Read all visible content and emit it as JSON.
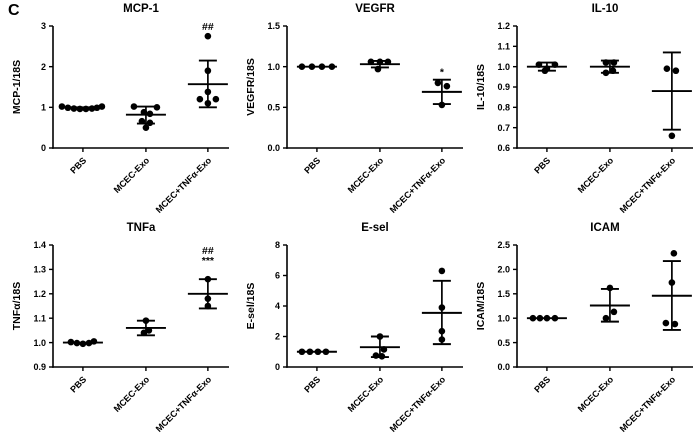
{
  "figure_label": "C",
  "colors": {
    "points": "#000000",
    "axis": "#000000",
    "background": "#ffffff"
  },
  "categories": [
    "PBS",
    "MCEC-Exo",
    "MCEC+TNFα-Exo"
  ],
  "chart_data": [
    {
      "type": "scatter",
      "title": "MCP-1",
      "ylabel": "MCP-1/18S",
      "ylim": [
        0,
        3
      ],
      "yticks": [
        0,
        1,
        2,
        3
      ],
      "ytick_decimals": 0,
      "grid": false,
      "groups": [
        {
          "category": "PBS",
          "mean": 1.0,
          "err_lo": null,
          "err_hi": null,
          "points": [
            [
              -21,
              1.02
            ],
            [
              -15,
              0.99
            ],
            [
              -9,
              0.97
            ],
            [
              -3,
              0.96
            ],
            [
              3,
              0.96
            ],
            [
              9,
              0.97
            ],
            [
              14,
              0.99
            ],
            [
              19,
              1.02
            ]
          ],
          "annotations": []
        },
        {
          "category": "MCEC-Exo",
          "mean": 0.82,
          "err_lo": 0.6,
          "err_hi": 1.02,
          "points": [
            [
              -12,
              1.02
            ],
            [
              11,
              1.0
            ],
            [
              -2,
              0.88
            ],
            [
              4,
              0.84
            ],
            [
              -4,
              0.66
            ],
            [
              4,
              0.62
            ],
            [
              0,
              0.5
            ]
          ],
          "annotations": []
        },
        {
          "category": "MCEC+TNFα-Exo",
          "mean": 1.57,
          "err_lo": 1.0,
          "err_hi": 2.15,
          "points": [
            [
              0,
              2.75
            ],
            [
              0,
              1.9
            ],
            [
              0,
              1.38
            ],
            [
              -8,
              1.2
            ],
            [
              0,
              1.1
            ],
            [
              8,
              1.2
            ]
          ],
          "annotations": [
            {
              "text": "##",
              "value": 2.97
            }
          ]
        }
      ]
    },
    {
      "type": "scatter",
      "title": "VEGFR",
      "ylabel": "VEGFR/18S",
      "ylim": [
        0,
        1.5
      ],
      "yticks": [
        0,
        0.5,
        1,
        1.5
      ],
      "ytick_decimals": 1,
      "grid": false,
      "groups": [
        {
          "category": "PBS",
          "mean": 1.0,
          "err_lo": null,
          "err_hi": null,
          "points": [
            [
              -15,
              1.0
            ],
            [
              -5,
              1.0
            ],
            [
              5,
              1.0
            ],
            [
              15,
              1.0
            ]
          ],
          "annotations": []
        },
        {
          "category": "MCEC-Exo",
          "mean": 1.03,
          "err_lo": 0.99,
          "err_hi": 1.07,
          "points": [
            [
              -9,
              1.06
            ],
            [
              0,
              1.06
            ],
            [
              8,
              1.06
            ],
            [
              -2,
              0.97
            ]
          ],
          "annotations": []
        },
        {
          "category": "MCEC+TNFα-Exo",
          "mean": 0.69,
          "err_lo": 0.54,
          "err_hi": 0.84,
          "points": [
            [
              -4,
              0.8
            ],
            [
              5,
              0.76
            ],
            [
              0,
              0.53
            ]
          ],
          "annotations": [
            {
              "text": "*",
              "value": 0.93
            }
          ]
        }
      ]
    },
    {
      "type": "scatter",
      "title": "IL-10",
      "ylabel": "IL-10/18S",
      "ylim": [
        0.6,
        1.2
      ],
      "yticks": [
        0.6,
        0.7,
        0.8,
        0.9,
        1.0,
        1.1,
        1.2
      ],
      "ytick_decimals": 1,
      "grid": false,
      "groups": [
        {
          "category": "PBS",
          "mean": 1.0,
          "err_lo": 0.98,
          "err_hi": 1.02,
          "points": [
            [
              -8,
              1.01
            ],
            [
              8,
              1.01
            ],
            [
              0,
              0.99
            ],
            [
              -2,
              0.98
            ]
          ],
          "annotations": []
        },
        {
          "category": "MCEC-Exo",
          "mean": 1.0,
          "err_lo": 0.97,
          "err_hi": 1.03,
          "points": [
            [
              -4,
              1.02
            ],
            [
              4,
              1.02
            ],
            [
              -4,
              0.97
            ],
            [
              3,
              0.98
            ]
          ],
          "annotations": []
        },
        {
          "category": "MCEC+TNFα-Exo",
          "mean": 0.88,
          "err_lo": 0.69,
          "err_hi": 1.07,
          "points": [
            [
              -5,
              0.99
            ],
            [
              4,
              0.98
            ],
            [
              0,
              0.66
            ]
          ],
          "annotations": []
        }
      ]
    },
    {
      "type": "scatter",
      "title": "TNFa",
      "ylabel": "TNFα/18S",
      "ylim": [
        0.9,
        1.4
      ],
      "yticks": [
        0.9,
        1.0,
        1.1,
        1.2,
        1.3,
        1.4
      ],
      "ytick_decimals": 1,
      "grid": false,
      "groups": [
        {
          "category": "PBS",
          "mean": 1.0,
          "err_lo": null,
          "err_hi": null,
          "points": [
            [
              -12,
              1.002
            ],
            [
              -6,
              0.998
            ],
            [
              0,
              0.995
            ],
            [
              6,
              0.998
            ],
            [
              11,
              1.005
            ]
          ],
          "annotations": []
        },
        {
          "category": "MCEC-Exo",
          "mean": 1.06,
          "err_lo": 1.03,
          "err_hi": 1.09,
          "points": [
            [
              0,
              1.09
            ],
            [
              3,
              1.05
            ],
            [
              -2,
              1.04
            ]
          ],
          "annotations": []
        },
        {
          "category": "MCEC+TNFα-Exo",
          "mean": 1.2,
          "err_lo": 1.14,
          "err_hi": 1.26,
          "points": [
            [
              0,
              1.26
            ],
            [
              0,
              1.18
            ],
            [
              0,
              1.15
            ]
          ],
          "annotations": [
            {
              "text": "##",
              "value": 1.375
            },
            {
              "text": "***",
              "value": 1.335
            }
          ]
        }
      ]
    },
    {
      "type": "scatter",
      "title": "E-sel",
      "ylabel": "E-sel/18S",
      "ylim": [
        0,
        8
      ],
      "yticks": [
        0,
        2,
        4,
        6,
        8
      ],
      "ytick_decimals": 0,
      "grid": false,
      "groups": [
        {
          "category": "PBS",
          "mean": 1.0,
          "err_lo": null,
          "err_hi": null,
          "points": [
            [
              -15,
              1.0
            ],
            [
              -7,
              1.0
            ],
            [
              1,
              1.0
            ],
            [
              9,
              1.0
            ]
          ],
          "annotations": []
        },
        {
          "category": "MCEC-Exo",
          "mean": 1.3,
          "err_lo": 0.65,
          "err_hi": 2.0,
          "points": [
            [
              0,
              2.0
            ],
            [
              4,
              1.15
            ],
            [
              -4,
              0.75
            ],
            [
              2,
              0.7
            ]
          ],
          "annotations": []
        },
        {
          "category": "MCEC+TNFα-Exo",
          "mean": 3.55,
          "err_lo": 1.5,
          "err_hi": 5.65,
          "points": [
            [
              0,
              6.3
            ],
            [
              0,
              3.9
            ],
            [
              0,
              2.35
            ],
            [
              0,
              1.8
            ]
          ],
          "annotations": []
        }
      ]
    },
    {
      "type": "scatter",
      "title": "ICAM",
      "ylabel": "ICAM/18S",
      "ylim": [
        0,
        2.5
      ],
      "yticks": [
        0,
        0.5,
        1.0,
        1.5,
        2.0,
        2.5
      ],
      "ytick_decimals": 1,
      "grid": false,
      "groups": [
        {
          "category": "PBS",
          "mean": 1.0,
          "err_lo": null,
          "err_hi": null,
          "points": [
            [
              -14,
              1.0
            ],
            [
              -7,
              1.0
            ],
            [
              0,
              1.0
            ],
            [
              8,
              1.0
            ]
          ],
          "annotations": []
        },
        {
          "category": "MCEC-Exo",
          "mean": 1.26,
          "err_lo": 0.93,
          "err_hi": 1.6,
          "points": [
            [
              0,
              1.62
            ],
            [
              4,
              1.13
            ],
            [
              -4,
              1.0
            ]
          ],
          "annotations": []
        },
        {
          "category": "MCEC+TNFα-Exo",
          "mean": 1.46,
          "err_lo": 0.76,
          "err_hi": 2.17,
          "points": [
            [
              2,
              2.33
            ],
            [
              0,
              1.73
            ],
            [
              -6,
              0.9
            ],
            [
              3,
              0.88
            ]
          ],
          "annotations": []
        }
      ]
    }
  ]
}
